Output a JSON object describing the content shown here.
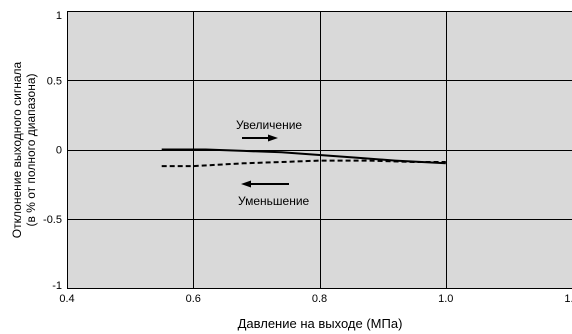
{
  "chart_data": {
    "type": "line",
    "title": "",
    "xlabel": "Давление на выходе (МПа)",
    "ylabel_lines": [
      "Отклонение выходного сигнала",
      "(в % от полного диапазона)"
    ],
    "xlim": [
      0.4,
      1.2
    ],
    "ylim": [
      -1,
      1
    ],
    "x_ticks": [
      0.4,
      0.6,
      0.8,
      1.0,
      1.2
    ],
    "x_tick_labels": [
      "0.4",
      "0.6",
      "0.8",
      "1.0",
      "1.2"
    ],
    "y_ticks": [
      1,
      0.5,
      0,
      -0.5,
      -1
    ],
    "y_tick_labels": [
      "1",
      "0.5",
      "0",
      "-0.5",
      "-1"
    ],
    "grid": true,
    "plot_background": "#d9d9d9",
    "series": [
      {
        "name": "Увеличение",
        "style": "solid",
        "color": "#000000",
        "points": [
          [
            0.55,
            0.0
          ],
          [
            0.62,
            0.0
          ],
          [
            0.68,
            -0.01
          ],
          [
            0.74,
            -0.02
          ],
          [
            0.8,
            -0.04
          ],
          [
            0.86,
            -0.06
          ],
          [
            0.92,
            -0.08
          ],
          [
            1.0,
            -0.1
          ]
        ]
      },
      {
        "name": "Уменьшение",
        "style": "dashed",
        "color": "#000000",
        "points": [
          [
            0.55,
            -0.12
          ],
          [
            0.6,
            -0.12
          ],
          [
            0.68,
            -0.1
          ],
          [
            0.74,
            -0.09
          ],
          [
            0.8,
            -0.08
          ],
          [
            0.88,
            -0.08
          ],
          [
            0.95,
            -0.09
          ],
          [
            1.0,
            -0.09
          ]
        ]
      }
    ],
    "annotations": [
      {
        "text": "Увеличение",
        "arrow": "right"
      },
      {
        "text": "Уменьшение",
        "arrow": "left"
      }
    ]
  }
}
